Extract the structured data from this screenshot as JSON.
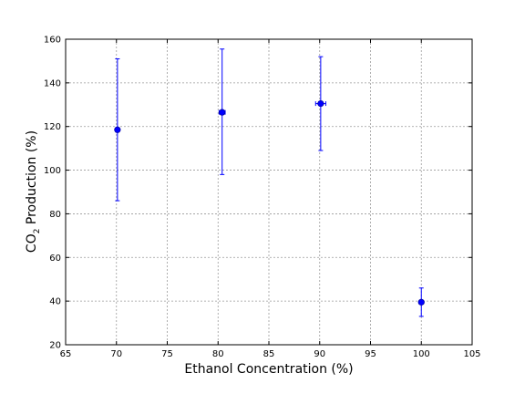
{
  "chart_data": {
    "type": "scatter",
    "title": "",
    "xlabel": "Ethanol Concentration (%)",
    "ylabel": {
      "pre": "CO",
      "sub": "2",
      "post": " Production (%)"
    },
    "xlim": [
      65,
      105
    ],
    "ylim": [
      20,
      160
    ],
    "xticks": [
      65,
      70,
      75,
      80,
      85,
      90,
      95,
      100,
      105
    ],
    "yticks": [
      20,
      40,
      60,
      80,
      100,
      120,
      140,
      160
    ],
    "grid": true,
    "color": "#0000ff",
    "points": [
      {
        "x": 70.1,
        "y": 118.5,
        "yerr_low": 86,
        "yerr_high": 151,
        "xerr": 0
      },
      {
        "x": 80.4,
        "y": 126.5,
        "yerr_low": 98,
        "yerr_high": 155.5,
        "xerr": 0.3
      },
      {
        "x": 90.1,
        "y": 130.5,
        "yerr_low": 109,
        "yerr_high": 152,
        "xerr": 0.5
      },
      {
        "x": 100,
        "y": 39.5,
        "yerr_low": 33,
        "yerr_high": 46,
        "xerr": 0
      }
    ]
  }
}
